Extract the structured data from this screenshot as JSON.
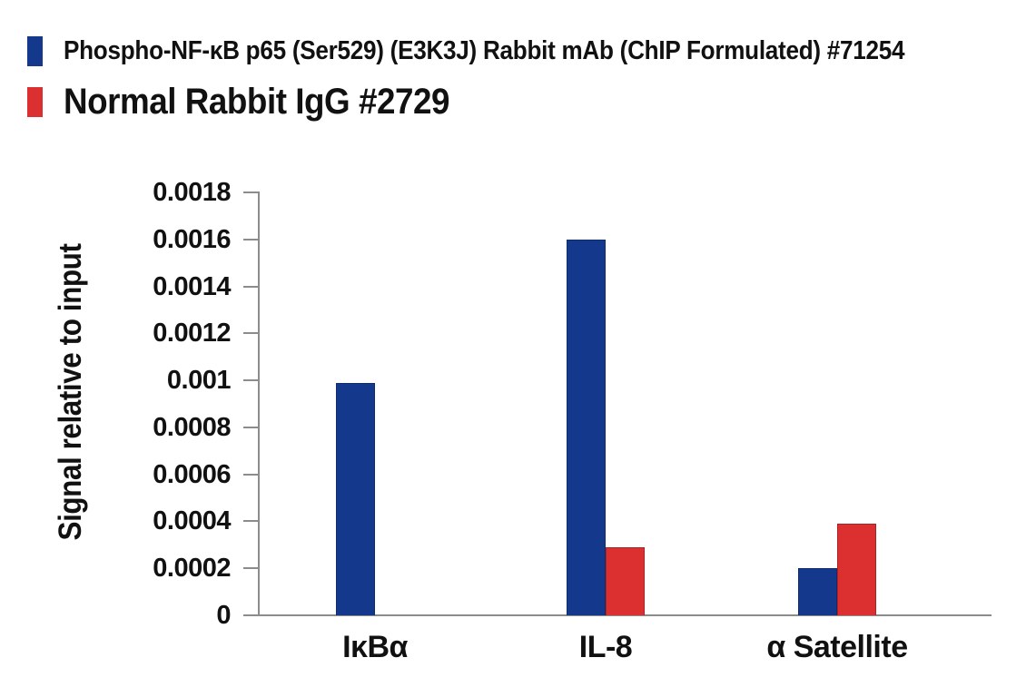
{
  "legend": {
    "items": [
      {
        "label": "Phospho-NF-κB p65 (Ser529) (E3K3J) Rabbit mAb (ChIP Formulated) #71254",
        "color": "#14398c"
      },
      {
        "label": "Normal Rabbit IgG #2729",
        "color": "#dc2f2f"
      }
    ]
  },
  "chart_data": {
    "type": "bar",
    "categories": [
      "IκBα",
      "IL-8",
      "α Satellite"
    ],
    "series": [
      {
        "name": "Phospho-NF-κB p65 (Ser529) (E3K3J) Rabbit mAb (ChIP Formulated) #71254",
        "color": "#14398c",
        "values": [
          0.00099,
          0.0016,
          0.0002
        ]
      },
      {
        "name": "Normal Rabbit IgG #2729",
        "color": "#dc2f2f",
        "values": [
          0,
          0.00029,
          0.00039
        ]
      }
    ],
    "title": "",
    "xlabel": "",
    "ylabel": "Signal relative to input",
    "ylim": [
      0,
      0.0018
    ],
    "ytick_labels": [
      "0",
      "0.0002",
      "0.0004",
      "0.0006",
      "0.0008",
      "0.001",
      "0.0012",
      "0.0014",
      "0.0016",
      "0.0018"
    ],
    "grid": false,
    "legend_position": "top-left",
    "axis_color": "#8c8c8c"
  }
}
